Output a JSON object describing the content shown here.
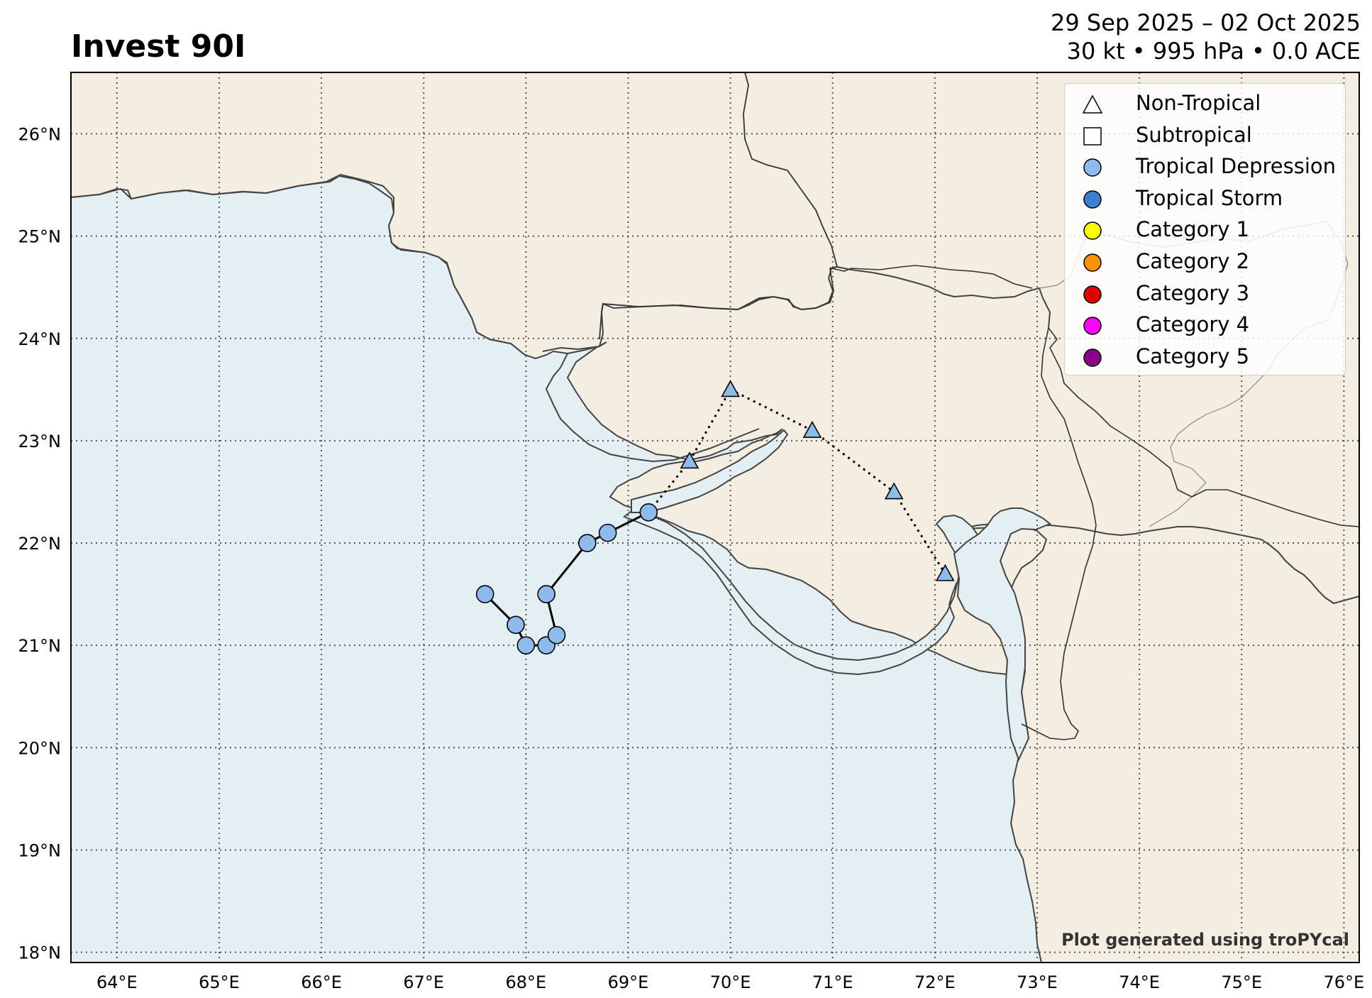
{
  "header": {
    "title": "Invest 90I",
    "date_range": "29 Sep 2025 – 02 Oct 2025",
    "stats": "30 kt • 995 hPa • 0.0 ACE"
  },
  "map": {
    "lon_range": [
      63.55,
      76.15
    ],
    "lat_range": [
      17.9,
      26.6
    ],
    "lon_ticks": [
      64,
      65,
      66,
      67,
      68,
      69,
      70,
      71,
      72,
      73,
      74,
      75,
      76
    ],
    "lat_ticks": [
      18,
      19,
      20,
      21,
      22,
      23,
      24,
      25,
      26
    ],
    "lon_tick_labels": [
      "64°E",
      "65°E",
      "66°E",
      "67°E",
      "68°E",
      "69°E",
      "70°E",
      "71°E",
      "72°E",
      "73°E",
      "74°E",
      "75°E",
      "76°E"
    ],
    "lat_tick_labels": [
      "18°N",
      "19°N",
      "20°N",
      "21°N",
      "22°N",
      "23°N",
      "24°N",
      "25°N",
      "26°N"
    ],
    "grid": "dotted",
    "colors": {
      "ocean": "#e3eff2",
      "land": "#f4ede1",
      "coast": "#444444",
      "border": "#333333",
      "track_point": "#8fbbec"
    }
  },
  "track": [
    {
      "lon": 67.6,
      "lat": 21.5,
      "type": "Tropical Depression"
    },
    {
      "lon": 67.9,
      "lat": 21.2,
      "type": "Tropical Depression"
    },
    {
      "lon": 68.0,
      "lat": 21.0,
      "type": "Tropical Depression"
    },
    {
      "lon": 68.2,
      "lat": 21.0,
      "type": "Tropical Depression"
    },
    {
      "lon": 68.3,
      "lat": 21.1,
      "type": "Tropical Depression"
    },
    {
      "lon": 68.2,
      "lat": 21.5,
      "type": "Tropical Depression"
    },
    {
      "lon": 68.6,
      "lat": 22.0,
      "type": "Tropical Depression"
    },
    {
      "lon": 68.8,
      "lat": 22.1,
      "type": "Tropical Depression"
    },
    {
      "lon": 69.2,
      "lat": 22.3,
      "type": "Tropical Depression"
    },
    {
      "lon": 69.6,
      "lat": 22.8,
      "type": "Non-Tropical"
    },
    {
      "lon": 70.0,
      "lat": 23.5,
      "type": "Non-Tropical"
    },
    {
      "lon": 70.8,
      "lat": 23.1,
      "type": "Non-Tropical"
    },
    {
      "lon": 71.6,
      "lat": 22.5,
      "type": "Non-Tropical"
    },
    {
      "lon": 72.1,
      "lat": 21.7,
      "type": "Non-Tropical"
    }
  ],
  "legend": {
    "placement": "top-right",
    "items": [
      {
        "label": "Non-Tropical",
        "symbol": "triangle",
        "color": "#ffffff"
      },
      {
        "label": "Subtropical",
        "symbol": "square",
        "color": "#ffffff"
      },
      {
        "label": "Tropical Depression",
        "symbol": "circle",
        "color": "#8fbbec"
      },
      {
        "label": "Tropical Storm",
        "symbol": "circle",
        "color": "#3a7fd0"
      },
      {
        "label": "Category 1",
        "symbol": "circle",
        "color": "#ffff00"
      },
      {
        "label": "Category 2",
        "symbol": "circle",
        "color": "#ff9200"
      },
      {
        "label": "Category 3",
        "symbol": "circle",
        "color": "#e50000"
      },
      {
        "label": "Category 4",
        "symbol": "circle",
        "color": "#ff00ff"
      },
      {
        "label": "Category 5",
        "symbol": "circle",
        "color": "#8b008b"
      }
    ]
  },
  "credit": "Plot generated using troPYcal"
}
